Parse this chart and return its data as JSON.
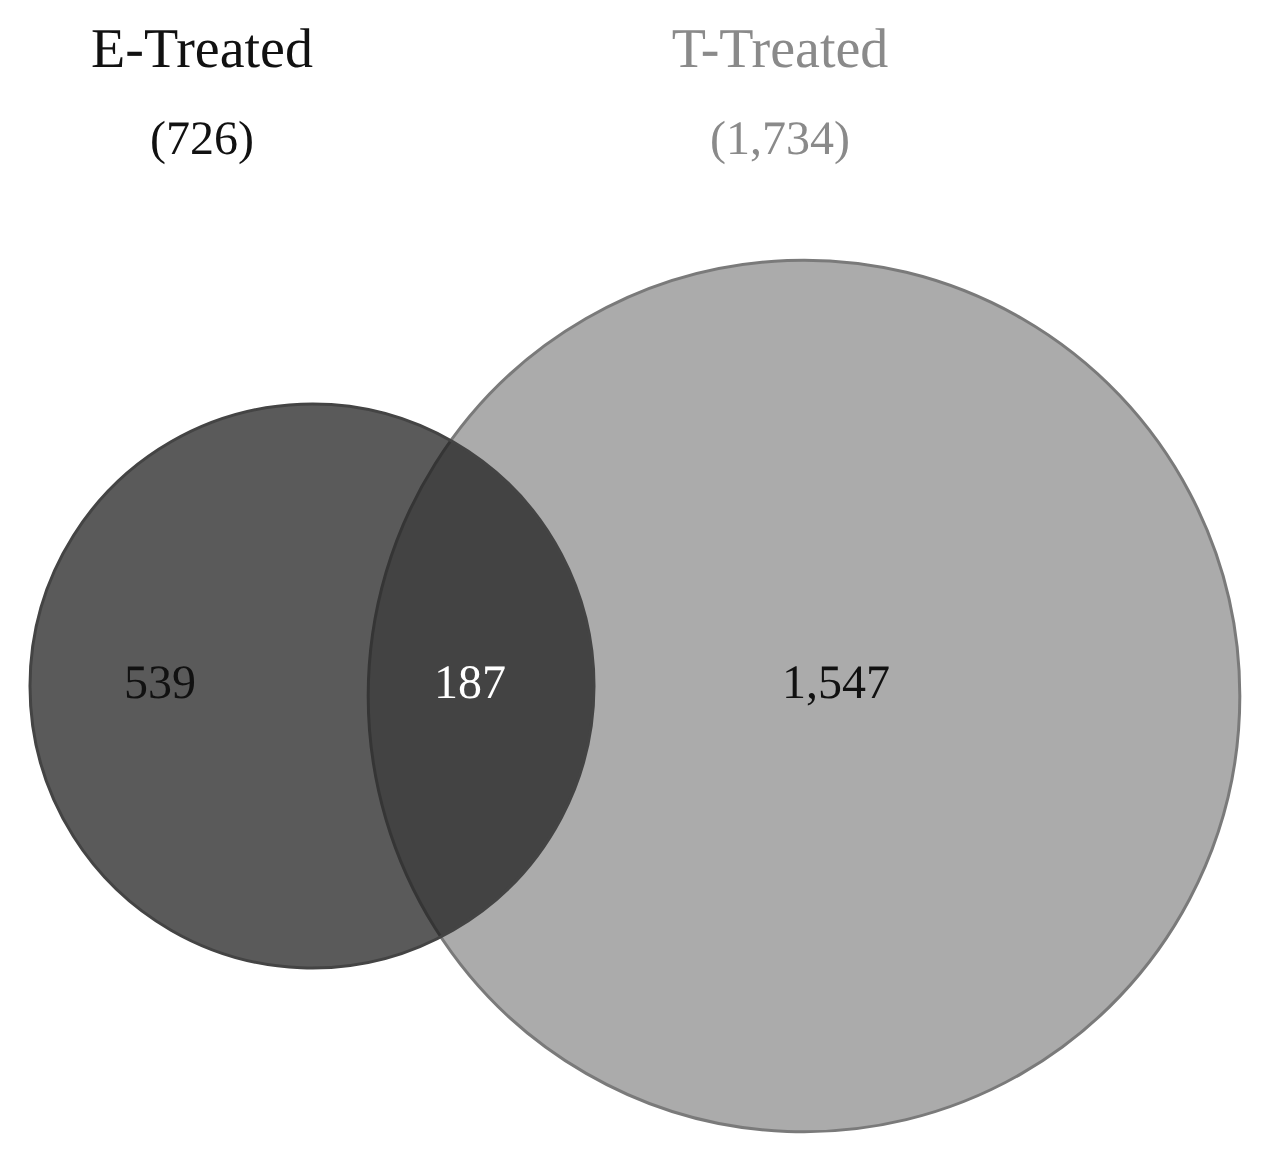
{
  "chart_data": {
    "type": "other",
    "categories": [
      "E-Treated",
      "T-Treated"
    ],
    "values": [
      726,
      1734
    ],
    "value_labels": [
      "(726)",
      "(1,734)"
    ],
    "colors": [
      "#5a5a5a",
      "#ababab"
    ],
    "annotations": [
      "539",
      "187",
      "1,547"
    ]
  }
}
